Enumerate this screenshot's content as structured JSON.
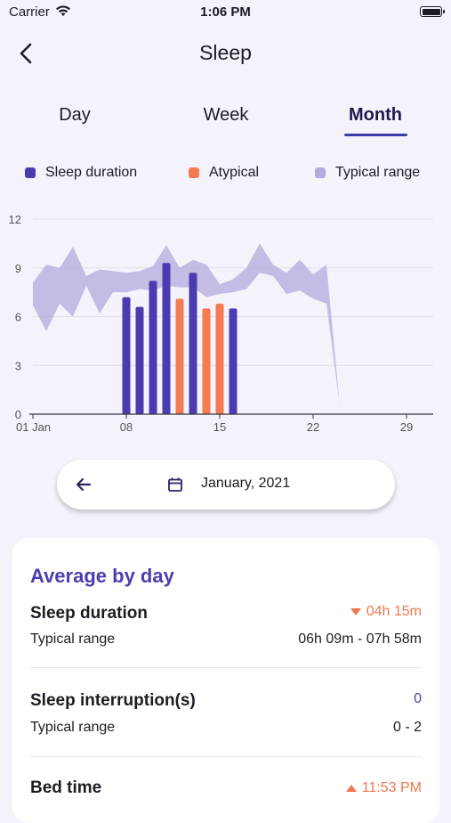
{
  "status_bar": {
    "carrier": "Carrier",
    "time": "1:06 PM"
  },
  "nav": {
    "title": "Sleep"
  },
  "tabs": [
    {
      "label": "Day",
      "active": false
    },
    {
      "label": "Week",
      "active": false
    },
    {
      "label": "Month",
      "active": true
    }
  ],
  "legend": [
    {
      "label": "Sleep duration",
      "color": "#4b3bb0"
    },
    {
      "label": "Atypical",
      "color": "#f47a52"
    },
    {
      "label": "Typical range",
      "color": "#b3aade"
    }
  ],
  "chart_data": {
    "type": "bar",
    "x_tick_labels": [
      "01 Jan",
      "08",
      "15",
      "22",
      "29"
    ],
    "x_ticks": [
      1,
      8,
      15,
      22,
      29
    ],
    "y_ticks": [
      0,
      3,
      6,
      9,
      12
    ],
    "y_tick_labels": [
      "0",
      "3",
      "6",
      "9",
      "12"
    ],
    "xlim": [
      1,
      31
    ],
    "ylim": [
      0,
      12
    ],
    "grid": true,
    "series": [
      {
        "name": "Sleep duration",
        "color": "#4b3bb0",
        "points": [
          {
            "day": 8,
            "value": 7.2
          },
          {
            "day": 9,
            "value": 6.6
          },
          {
            "day": 10,
            "value": 8.2
          },
          {
            "day": 11,
            "value": 9.3
          },
          {
            "day": 13,
            "value": 8.7
          },
          {
            "day": 16,
            "value": 6.5
          }
        ]
      },
      {
        "name": "Atypical",
        "color": "#f47a52",
        "points": [
          {
            "day": 12,
            "value": 7.1
          },
          {
            "day": 14,
            "value": 6.5
          },
          {
            "day": 15,
            "value": 6.8
          }
        ]
      }
    ],
    "range": {
      "name": "Typical range",
      "color": "#b3aade",
      "days": [
        1,
        2,
        3,
        4,
        5,
        6,
        7,
        8,
        9,
        10,
        11,
        12,
        13,
        14,
        15,
        16,
        17,
        18,
        19,
        20,
        21,
        22,
        23,
        24
      ],
      "upper": [
        8.1,
        9.2,
        9.0,
        10.3,
        8.5,
        8.9,
        8.8,
        8.7,
        8.8,
        9.1,
        10.4,
        9.0,
        9.5,
        9.2,
        8.0,
        8.3,
        9.0,
        10.5,
        9.2,
        8.7,
        9.5,
        8.6,
        9.2,
        0.5
      ],
      "lower": [
        6.7,
        5.1,
        6.8,
        6.0,
        7.9,
        6.2,
        7.5,
        7.5,
        7.7,
        7.6,
        7.9,
        7.8,
        7.8,
        7.2,
        7.4,
        7.5,
        7.7,
        8.7,
        8.5,
        7.4,
        7.6,
        7.1,
        6.8,
        0.5
      ]
    }
  },
  "date_selector": {
    "label": "January, 2021"
  },
  "card": {
    "heading": "Average by day",
    "rows": [
      {
        "title": "Sleep duration",
        "value": "04h 15m",
        "trend": "down",
        "sub_label": "Typical range",
        "sub_value": "06h 09m - 07h 58m"
      },
      {
        "title": "Sleep interruption(s)",
        "value": "0",
        "trend": "none",
        "sub_label": "Typical range",
        "sub_value": "0 - 2"
      },
      {
        "title": "Bed time",
        "value": "11:53 PM",
        "trend": "up"
      }
    ]
  }
}
